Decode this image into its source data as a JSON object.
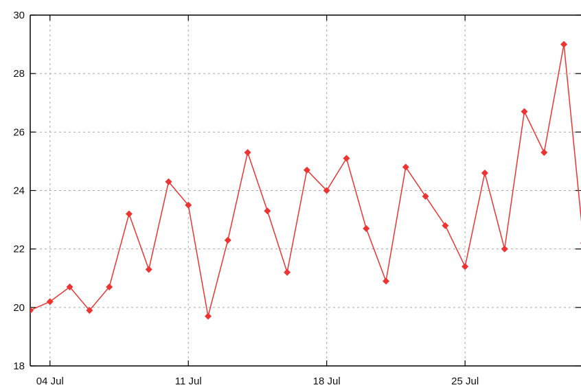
{
  "chart_data": {
    "type": "line",
    "x_axis": {
      "kind": "date",
      "range": [
        "2024-07-03",
        "2024-07-31"
      ],
      "ticks": [
        {
          "label": "04 Jul",
          "date": "2024-07-04"
        },
        {
          "label": "11 Jul",
          "date": "2024-07-11"
        },
        {
          "label": "18 Jul",
          "date": "2024-07-18"
        },
        {
          "label": "25 Jul",
          "date": "2024-07-25"
        }
      ]
    },
    "y_axis": {
      "range": [
        18,
        30
      ],
      "ticks": [
        18,
        20,
        22,
        24,
        26,
        28,
        30
      ],
      "tick_labels": [
        "18",
        "20",
        "22",
        "24",
        "26",
        "28",
        "30"
      ]
    },
    "grid": true,
    "series": [
      {
        "color": "#ee3333",
        "marker": "diamond",
        "x": [
          "2024-07-03",
          "2024-07-04",
          "2024-07-05",
          "2024-07-06",
          "2024-07-07",
          "2024-07-08",
          "2024-07-09",
          "2024-07-10",
          "2024-07-11",
          "2024-07-12",
          "2024-07-13",
          "2024-07-14",
          "2024-07-15",
          "2024-07-16",
          "2024-07-17",
          "2024-07-18",
          "2024-07-19",
          "2024-07-20",
          "2024-07-21",
          "2024-07-22",
          "2024-07-23",
          "2024-07-24",
          "2024-07-25",
          "2024-07-26",
          "2024-07-27",
          "2024-07-28",
          "2024-07-29",
          "2024-07-30",
          "2024-07-31"
        ],
        "y": [
          19.9,
          20.2,
          20.7,
          19.9,
          20.7,
          23.2,
          21.3,
          24.3,
          23.5,
          19.7,
          22.3,
          25.3,
          23.3,
          21.2,
          24.7,
          24.0,
          25.1,
          22.7,
          20.9,
          24.8,
          23.8,
          22.8,
          21.4,
          24.6,
          22.0,
          26.7,
          25.3,
          29.0,
          22.2
        ]
      }
    ]
  }
}
